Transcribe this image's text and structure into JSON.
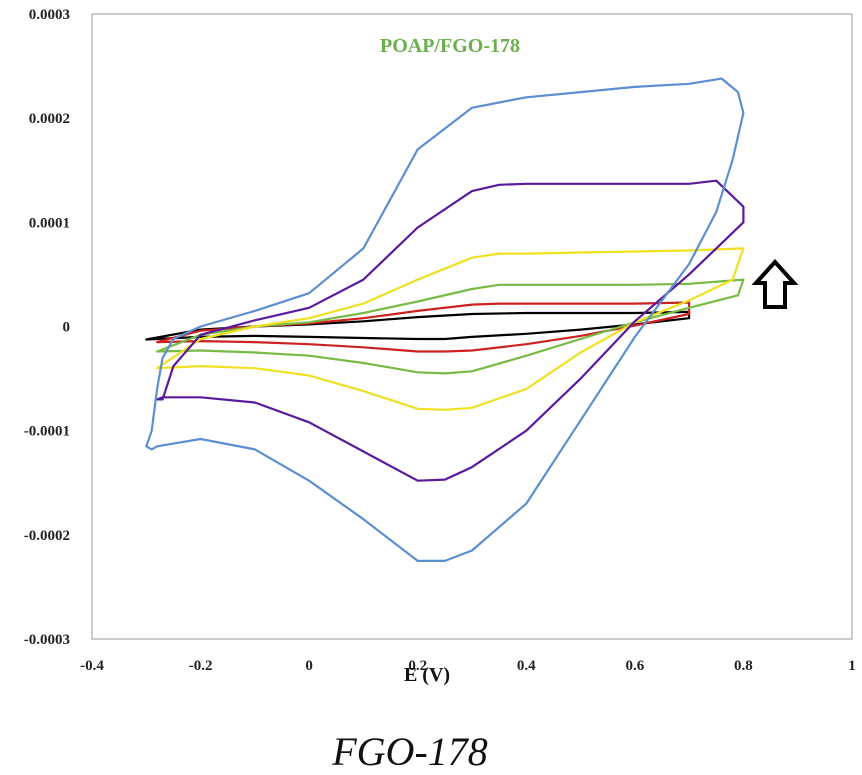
{
  "chart_data": {
    "type": "line",
    "title": "POAP/FGO-178",
    "title_color": "#6ab04c",
    "xlabel": "E (V)",
    "ylabel": "",
    "xlim": [
      -0.4,
      1
    ],
    "ylim": [
      -0.0003,
      0.0003
    ],
    "x_ticks": [
      -0.4,
      -0.2,
      0,
      0.2,
      0.4,
      0.6,
      0.8,
      1
    ],
    "x_tick_labels": [
      "-0.4",
      "-0.2",
      "0",
      "0.2",
      "0.4",
      "0.6",
      "0.8",
      "1"
    ],
    "y_ticks": [
      -0.0003,
      -0.0002,
      -0.0001,
      0,
      0.0001,
      0.0002,
      0.0003
    ],
    "y_tick_labels": [
      "-0.0003",
      "-0.0002",
      "-0.0001",
      "0",
      "0.0001",
      "0.0002",
      "0.0003"
    ],
    "grid": false,
    "legend": "none",
    "annotation": "up-arrow",
    "series": [
      {
        "color": "#000000",
        "x": [
          -0.3,
          -0.2,
          -0.1,
          0.0,
          0.1,
          0.2,
          0.3,
          0.4,
          0.5,
          0.6,
          0.7,
          0.7,
          0.6,
          0.5,
          0.4,
          0.3,
          0.25,
          0.2,
          0.1,
          0.0,
          -0.1,
          -0.2,
          -0.3
        ],
        "y": [
          -1.25e-05,
          -3e-06,
          0.0,
          2e-06,
          5e-06,
          9e-06,
          1.2e-05,
          1.3e-05,
          1.3e-05,
          1.3e-05,
          1.4e-05,
          8e-06,
          2e-06,
          -3e-06,
          -7e-06,
          -1e-05,
          -1.2e-05,
          -1.2e-05,
          -1.1e-05,
          -1e-05,
          -9e-06,
          -1e-05,
          -1.25e-05
        ]
      },
      {
        "color": "#cc2222",
        "x": [
          -0.28,
          -0.2,
          -0.1,
          0.0,
          0.1,
          0.2,
          0.3,
          0.35,
          0.4,
          0.5,
          0.6,
          0.7,
          0.7,
          0.6,
          0.5,
          0.4,
          0.3,
          0.25,
          0.2,
          0.1,
          0.0,
          -0.1,
          -0.2,
          -0.28
        ],
        "y": [
          -1.5e-05,
          -4e-06,
          0.0,
          3e-06,
          8e-06,
          1.5e-05,
          2.1e-05,
          2.2e-05,
          2.2e-05,
          2.2e-05,
          2.2e-05,
          2.3e-05,
          1.2e-05,
          1e-06,
          -9e-06,
          -1.7e-05,
          -2.3e-05,
          -2.4e-05,
          -2.4e-05,
          -2e-05,
          -1.7e-05,
          -1.5e-05,
          -1.4e-05,
          -1.5e-05
        ]
      },
      {
        "color": "#77bb44",
        "x": [
          -0.28,
          -0.2,
          -0.1,
          0.0,
          0.1,
          0.2,
          0.3,
          0.35,
          0.4,
          0.5,
          0.6,
          0.7,
          0.8,
          0.79,
          0.7,
          0.6,
          0.5,
          0.4,
          0.3,
          0.25,
          0.2,
          0.1,
          0.0,
          -0.1,
          -0.2,
          -0.28
        ],
        "y": [
          -2.4e-05,
          -8e-06,
          0.0,
          4e-06,
          1.3e-05,
          2.4e-05,
          3.6e-05,
          4e-05,
          4e-05,
          4e-05,
          4e-05,
          4.1e-05,
          4.5e-05,
          3e-05,
          1.8e-05,
          4e-06,
          -1.2e-05,
          -2.8e-05,
          -4.3e-05,
          -4.5e-05,
          -4.4e-05,
          -3.5e-05,
          -2.8e-05,
          -2.5e-05,
          -2.3e-05,
          -2.4e-05
        ]
      },
      {
        "color": "#f0e020",
        "x": [
          -0.28,
          -0.2,
          -0.1,
          0.0,
          0.1,
          0.2,
          0.3,
          0.35,
          0.4,
          0.5,
          0.6,
          0.7,
          0.8,
          0.78,
          0.7,
          0.6,
          0.5,
          0.4,
          0.3,
          0.25,
          0.2,
          0.1,
          0.0,
          -0.1,
          -0.2,
          -0.28
        ],
        "y": [
          -4e-05,
          -1.2e-05,
          0.0,
          8e-06,
          2.2e-05,
          4.5e-05,
          6.6e-05,
          7e-05,
          7e-05,
          7.1e-05,
          7.2e-05,
          7.3e-05,
          7.5e-05,
          4.5e-05,
          2.5e-05,
          4e-06,
          -2.5e-05,
          -6e-05,
          -7.8e-05,
          -8e-05,
          -7.9e-05,
          -6.2e-05,
          -4.7e-05,
          -4e-05,
          -3.8e-05,
          -4e-05
        ]
      },
      {
        "color": "#5b1a9e",
        "x": [
          -0.27,
          -0.25,
          -0.2,
          -0.1,
          0.0,
          0.1,
          0.2,
          0.3,
          0.35,
          0.4,
          0.5,
          0.6,
          0.7,
          0.75,
          0.8,
          0.8,
          0.75,
          0.7,
          0.6,
          0.5,
          0.4,
          0.3,
          0.25,
          0.2,
          0.1,
          0.0,
          -0.1,
          -0.2,
          -0.27,
          -0.28
        ],
        "y": [
          -7e-05,
          -3.8e-05,
          -8e-06,
          6e-06,
          1.8e-05,
          4.5e-05,
          9.5e-05,
          0.00013,
          0.000136,
          0.000137,
          0.000137,
          0.000137,
          0.000137,
          0.00014,
          0.000115,
          0.0001,
          7.5e-05,
          5e-05,
          5e-06,
          -5e-05,
          -0.0001,
          -0.000135,
          -0.000147,
          -0.000148,
          -0.00012,
          -9.2e-05,
          -7.3e-05,
          -6.8e-05,
          -6.8e-05,
          -7e-05
        ]
      },
      {
        "color": "#5b8fd0",
        "x": [
          -0.3,
          -0.29,
          -0.28,
          -0.27,
          -0.25,
          -0.2,
          -0.1,
          0.0,
          0.1,
          0.2,
          0.3,
          0.35,
          0.4,
          0.5,
          0.6,
          0.7,
          0.76,
          0.79,
          0.8,
          0.78,
          0.75,
          0.7,
          0.6,
          0.5,
          0.4,
          0.3,
          0.25,
          0.2,
          0.1,
          0.0,
          -0.1,
          -0.2,
          -0.28,
          -0.29,
          -0.3
        ],
        "y": [
          -0.000115,
          -0.0001,
          -6e-05,
          -3e-05,
          -1.2e-05,
          0.0,
          1.5e-05,
          3.2e-05,
          7.5e-05,
          0.00017,
          0.00021,
          0.000215,
          0.00022,
          0.000225,
          0.00023,
          0.000233,
          0.000238,
          0.000225,
          0.000205,
          0.00016,
          0.00011,
          6e-05,
          -1e-05,
          -9e-05,
          -0.00017,
          -0.000215,
          -0.000225,
          -0.000225,
          -0.000185,
          -0.000148,
          -0.000118,
          -0.000108,
          -0.000115,
          -0.000118,
          -0.000115
        ]
      }
    ]
  },
  "caption": "FGO-178"
}
